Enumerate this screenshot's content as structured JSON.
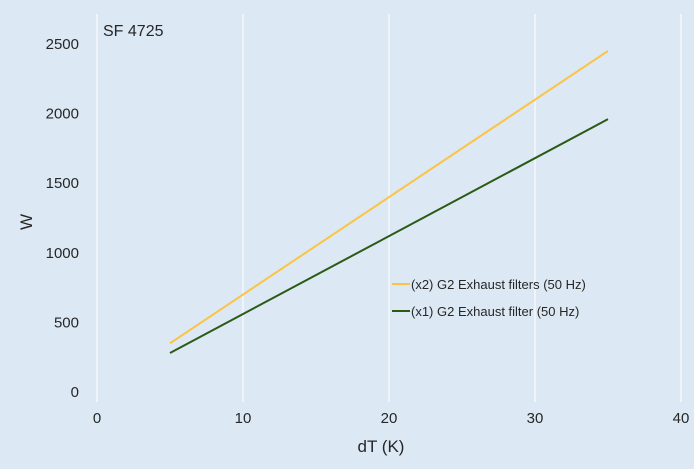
{
  "chart_data": {
    "type": "line",
    "title": "SF 4725",
    "xlabel": "dT (K)",
    "ylabel": "W",
    "xlim": [
      0,
      40
    ],
    "ylim": [
      0,
      2500
    ],
    "xticks": [
      0,
      10,
      20,
      30,
      40
    ],
    "yticks": [
      0,
      500,
      1000,
      1500,
      2000,
      2500
    ],
    "grid": "vertical",
    "legend_position": "lower-right",
    "series": [
      {
        "name": "(x2) G2 Exhaust filters (50 Hz)",
        "color": "#fcc343",
        "x": [
          5,
          35
        ],
        "y": [
          350,
          2450
        ]
      },
      {
        "name": "(x1) G2 Exhaust filter (50 Hz)",
        "color": "#2b5a16",
        "x": [
          5,
          35
        ],
        "y": [
          280,
          1960
        ]
      }
    ]
  }
}
